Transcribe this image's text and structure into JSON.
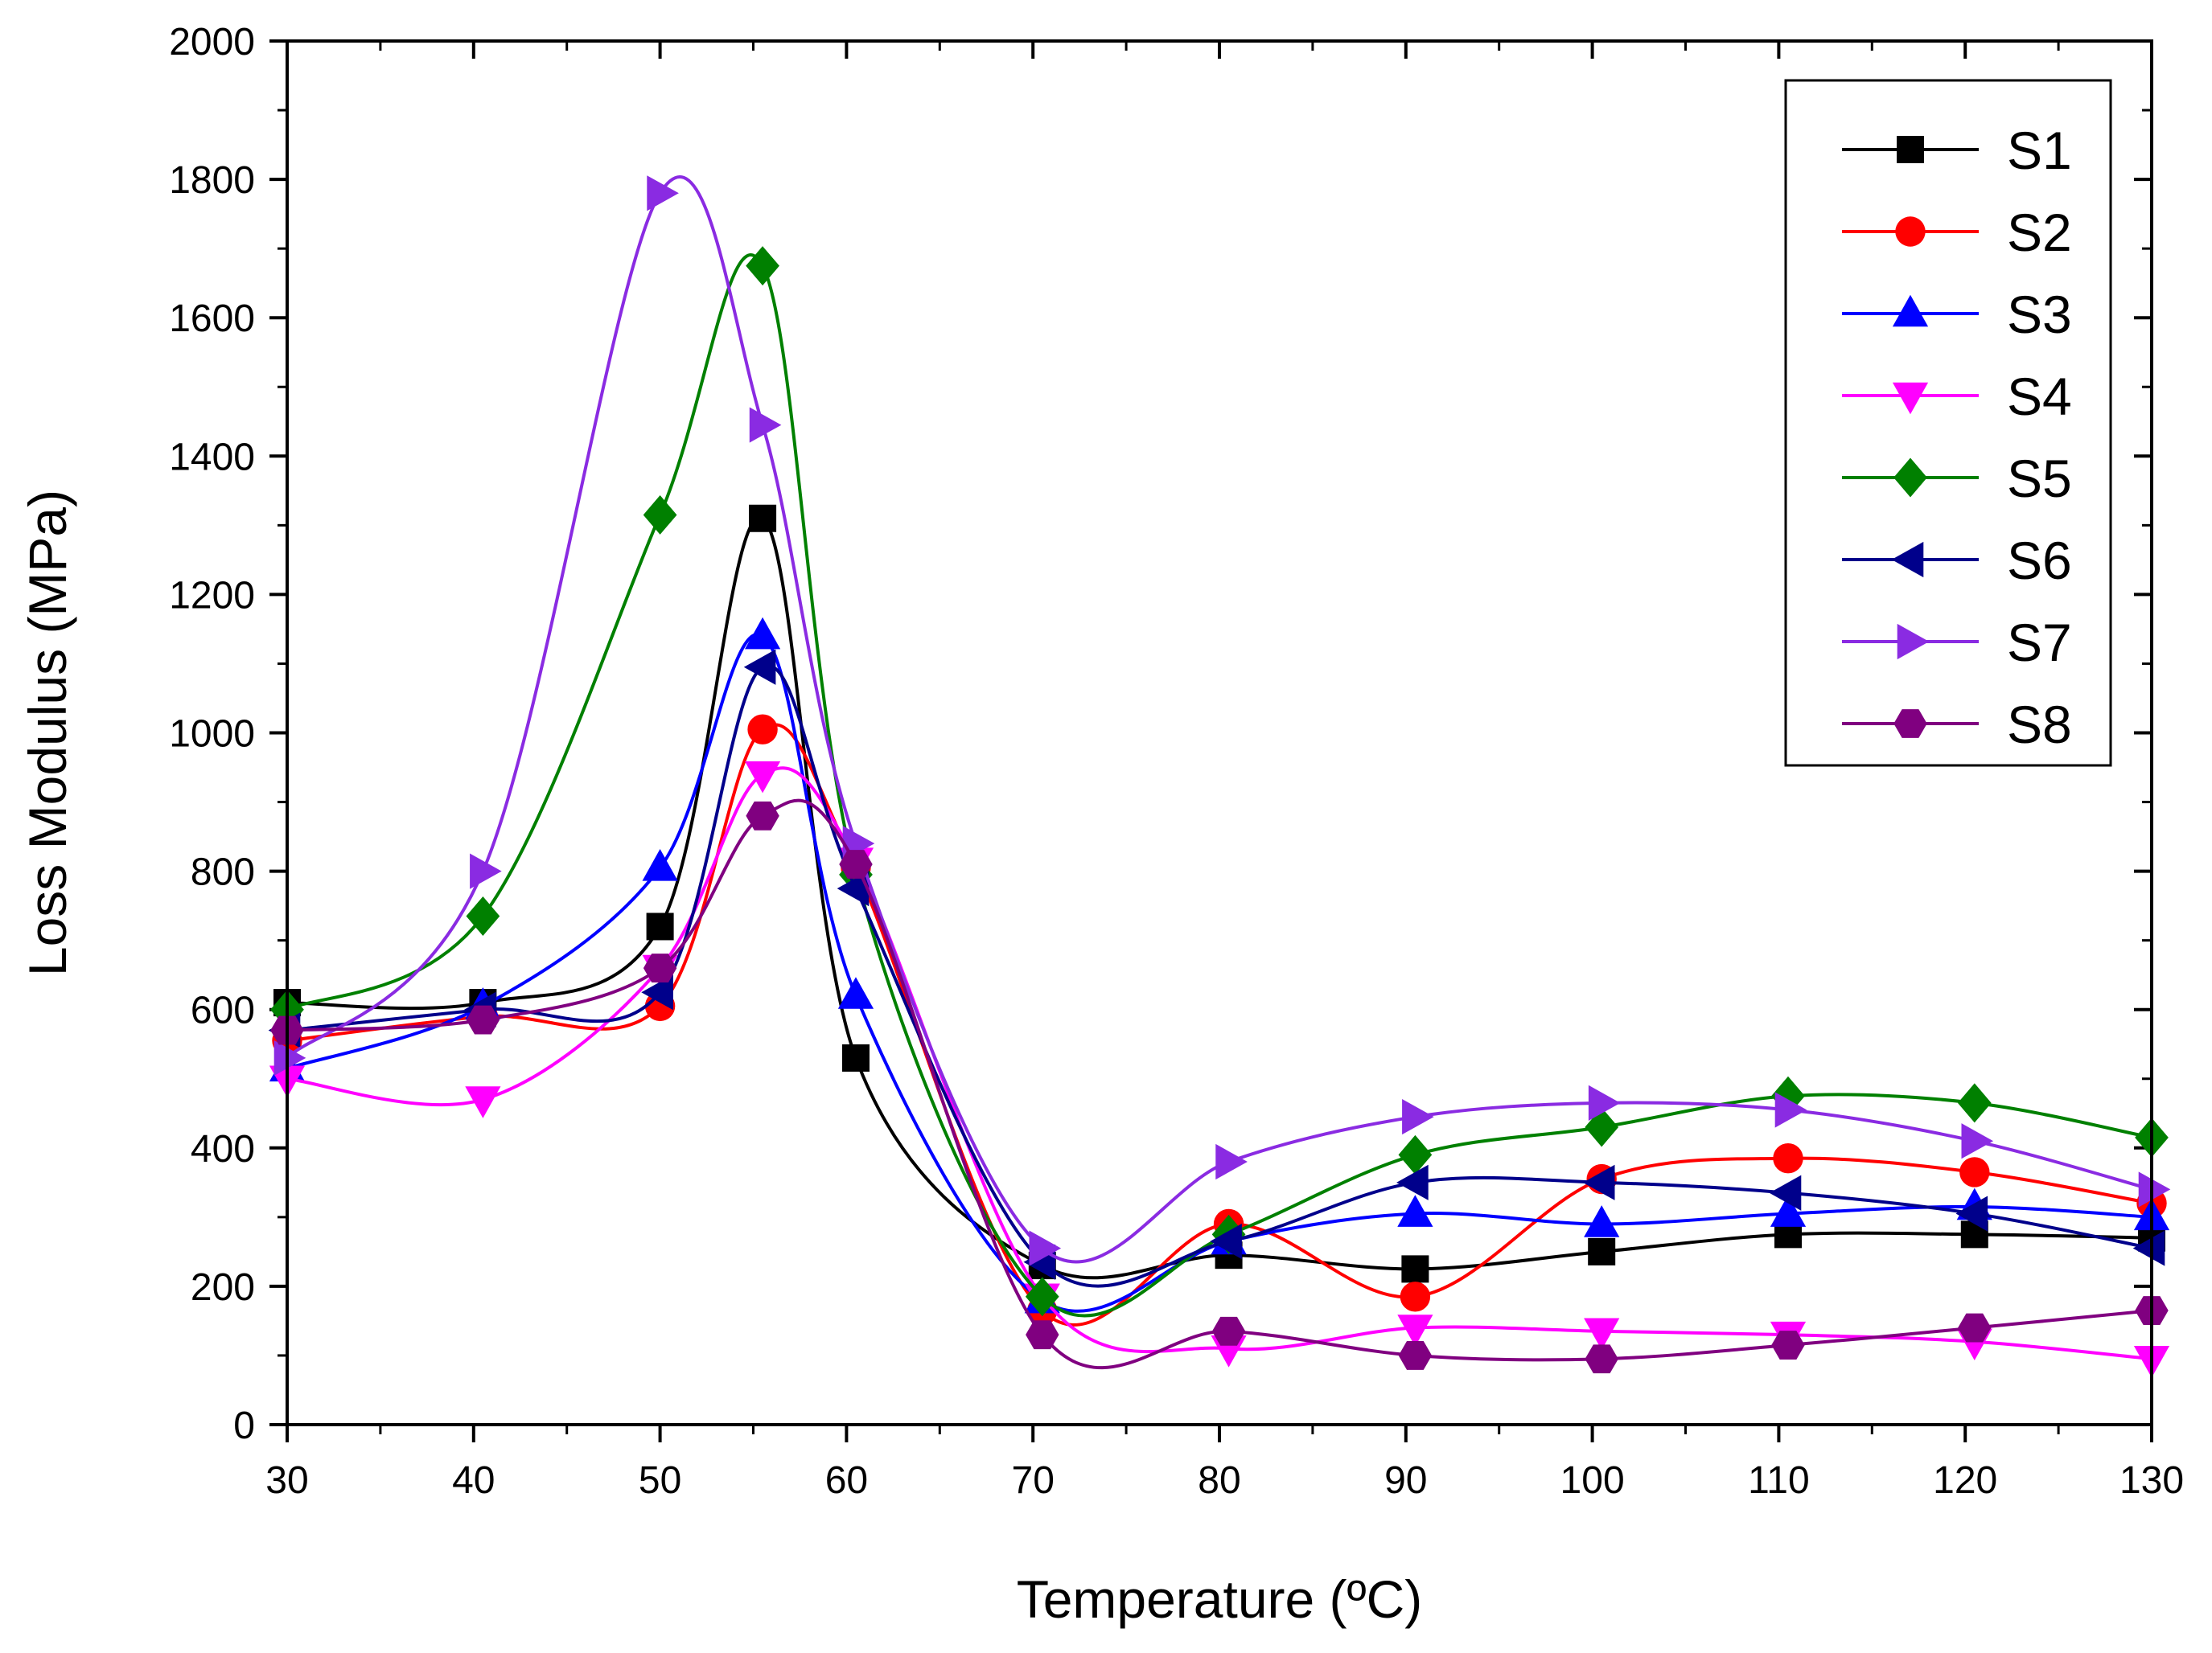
{
  "chart_data": {
    "type": "line",
    "title": "",
    "xlabel": "Temperature (ºC)",
    "ylabel": "Loss Modulus (MPa)",
    "xlim": [
      30,
      130
    ],
    "ylim": [
      0,
      2000
    ],
    "xticks": [
      30,
      40,
      50,
      60,
      70,
      80,
      90,
      100,
      110,
      120,
      130
    ],
    "yticks": [
      0,
      200,
      400,
      600,
      800,
      1000,
      1200,
      1400,
      1600,
      1800,
      2000
    ],
    "x_tick_labels": [
      "30",
      "40",
      "50",
      "60",
      "70",
      "80",
      "90",
      "100",
      "110",
      "120",
      "130"
    ],
    "y_tick_labels": [
      "0",
      "200",
      "400",
      "600",
      "800",
      "1000",
      "1200",
      "1400",
      "1600",
      "1800",
      "2000"
    ],
    "legend_position": "top-right",
    "x": [
      30,
      40.5,
      50,
      55.5,
      60.5,
      70.5,
      80.5,
      90.5,
      100.5,
      110.5,
      120.5,
      130
    ],
    "series": [
      {
        "name": "S1",
        "color": "#000000",
        "marker": "square",
        "values": [
          610,
          610,
          720,
          1310,
          530,
          230,
          245,
          225,
          250,
          275,
          275,
          270
        ]
      },
      {
        "name": "S2",
        "color": "#ff0000",
        "marker": "circle",
        "values": [
          555,
          590,
          605,
          1005,
          805,
          165,
          290,
          185,
          355,
          385,
          365,
          320
        ]
      },
      {
        "name": "S3",
        "color": "#0000ff",
        "marker": "triangle-up",
        "values": [
          515,
          605,
          805,
          1140,
          620,
          180,
          265,
          305,
          290,
          305,
          315,
          300
        ]
      },
      {
        "name": "S4",
        "color": "#ff00ff",
        "marker": "triangle-down",
        "values": [
          500,
          470,
          660,
          940,
          815,
          185,
          110,
          140,
          135,
          130,
          120,
          95
        ]
      },
      {
        "name": "S5",
        "color": "#008000",
        "marker": "diamond",
        "values": [
          600,
          735,
          1315,
          1675,
          795,
          185,
          275,
          390,
          430,
          475,
          465,
          415
        ]
      },
      {
        "name": "S6",
        "color": "#00008b",
        "marker": "triangle-left",
        "values": [
          570,
          600,
          625,
          1095,
          775,
          235,
          265,
          350,
          350,
          335,
          305,
          255
        ]
      },
      {
        "name": "S7",
        "color": "#8a2be2",
        "marker": "triangle-right",
        "values": [
          530,
          800,
          1780,
          1445,
          840,
          255,
          380,
          445,
          465,
          455,
          410,
          340
        ]
      },
      {
        "name": "S8",
        "color": "#800080",
        "marker": "hexagon",
        "values": [
          570,
          585,
          660,
          880,
          810,
          130,
          135,
          100,
          95,
          115,
          140,
          165
        ]
      }
    ]
  }
}
